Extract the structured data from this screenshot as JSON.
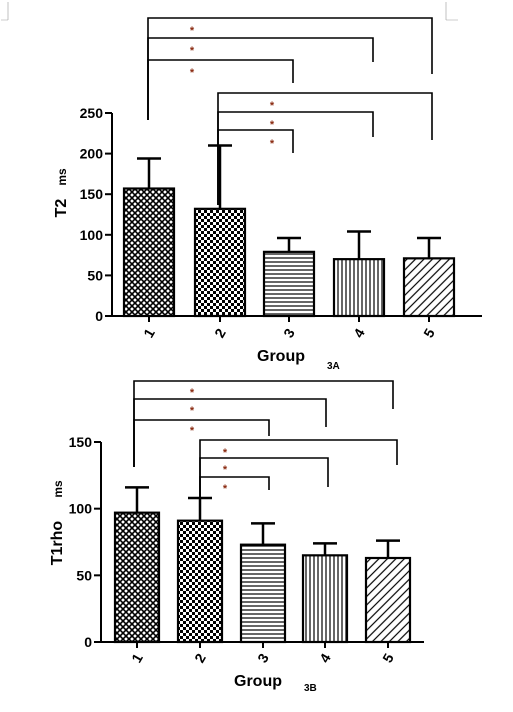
{
  "chart_data": [
    {
      "type": "bar",
      "panel_label": "3A",
      "categories": [
        "1",
        "2",
        "3",
        "4",
        "5"
      ],
      "values": [
        157,
        132,
        79,
        70,
        71
      ],
      "error_upper": [
        194,
        210,
        96,
        104,
        96
      ],
      "ylabel": "T2",
      "yunit": "ms",
      "xlabel": "Group",
      "ylim": [
        0,
        250
      ],
      "yticks": [
        "0",
        "50",
        "100",
        "150",
        "200",
        "250"
      ],
      "patterns": [
        "crosshatch",
        "checker",
        "horizontal",
        "vertical",
        "diagonal"
      ],
      "significance": [
        {
          "from": "1",
          "to": "5",
          "label": "*"
        },
        {
          "from": "1",
          "to": "4",
          "label": "*"
        },
        {
          "from": "1",
          "to": "3",
          "label": "*"
        },
        {
          "from": "2",
          "to": "5",
          "label": "*"
        },
        {
          "from": "2",
          "to": "4",
          "label": "*"
        },
        {
          "from": "2",
          "to": "3",
          "label": "*"
        }
      ]
    },
    {
      "type": "bar",
      "panel_label": "3B",
      "categories": [
        "1",
        "2",
        "3",
        "4",
        "5"
      ],
      "values": [
        97,
        91,
        73,
        65,
        63
      ],
      "error_upper": [
        116,
        108,
        89,
        74,
        76
      ],
      "ylabel": "T1rho",
      "yunit": "ms",
      "xlabel": "Group",
      "ylim": [
        0,
        150
      ],
      "yticks": [
        "0",
        "50",
        "100",
        "150"
      ],
      "patterns": [
        "crosshatch",
        "checker",
        "horizontal",
        "vertical",
        "diagonal"
      ],
      "significance": [
        {
          "from": "1",
          "to": "5",
          "label": "*"
        },
        {
          "from": "1",
          "to": "4",
          "label": "*"
        },
        {
          "from": "1",
          "to": "3",
          "label": "*"
        },
        {
          "from": "2",
          "to": "5",
          "label": "*"
        },
        {
          "from": "2",
          "to": "4",
          "label": "*"
        },
        {
          "from": "2",
          "to": "3",
          "label": "*"
        }
      ]
    }
  ]
}
